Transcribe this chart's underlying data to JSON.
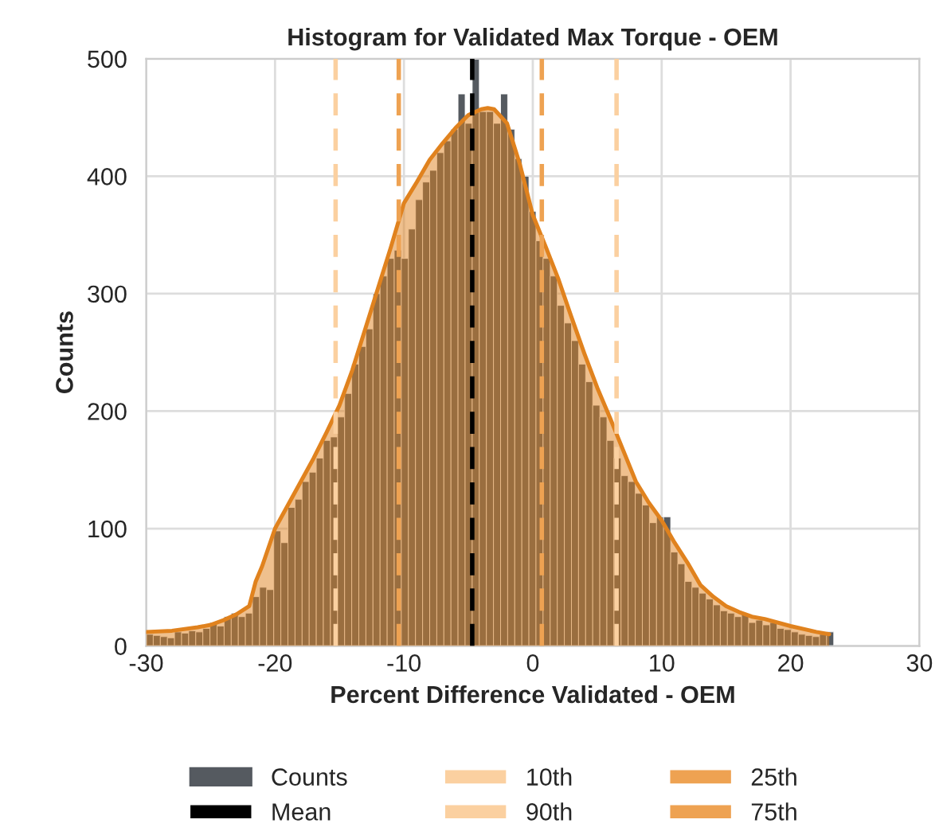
{
  "chart_data": {
    "type": "histogram",
    "title": "Histogram for Validated Max Torque - OEM",
    "xlabel": "Percent Difference Validated - OEM",
    "ylabel": "Counts",
    "xlim": [
      -30,
      30
    ],
    "xticks": [
      -30,
      -20,
      -10,
      0,
      10,
      20,
      30
    ],
    "ylim": [
      0,
      500
    ],
    "yticks": [
      0,
      100,
      200,
      300,
      400,
      500
    ],
    "grid": true,
    "legend": "bottom",
    "series": [
      {
        "name": "Counts",
        "color": "#555a60",
        "bins": [
          -30,
          -29.45,
          -28.9,
          -28.35,
          -27.8,
          -27.25,
          -26.7,
          -26.15,
          -25.6,
          -25.05,
          -24.5,
          -23.95,
          -23.4,
          -22.85,
          -22.3,
          -21.75,
          -21.2,
          -20.65,
          -20.1,
          -19.55,
          -19,
          -18.45,
          -17.9,
          -17.35,
          -16.8,
          -16.25,
          -15.7,
          -15.15,
          -14.6,
          -14.05,
          -13.5,
          -12.95,
          -12.4,
          -11.85,
          -11.3,
          -10.75,
          -10.2,
          -9.65,
          -9.1,
          -8.55,
          -8,
          -7.45,
          -6.9,
          -6.35,
          -5.8,
          -5.25,
          -4.7,
          -4.15,
          -3.6,
          -3.05,
          -2.5,
          -1.95,
          -1.4,
          -0.85,
          -0.3,
          0.25,
          0.8,
          1.35,
          1.9,
          2.45,
          3,
          3.55,
          4.1,
          4.65,
          5.2,
          5.75,
          6.3,
          6.85,
          7.4,
          7.95,
          8.5,
          9.05,
          9.6,
          10.15,
          10.7,
          11.25,
          11.8,
          12.35,
          12.9,
          13.45,
          14,
          14.55,
          15.1,
          15.65,
          16.2,
          16.75,
          17.3,
          17.85,
          18.4,
          18.95,
          19.5,
          20.05,
          20.6,
          21.15,
          21.7,
          22.25,
          22.8,
          23.35
        ],
        "values": [
          10,
          9,
          8,
          7,
          12,
          11,
          13,
          12,
          15,
          20,
          17,
          25,
          28,
          25,
          28,
          42,
          50,
          48,
          98,
          88,
          118,
          125,
          140,
          148,
          160,
          175,
          178,
          195,
          215,
          240,
          255,
          270,
          300,
          315,
          330,
          337,
          330,
          355,
          380,
          395,
          405,
          420,
          430,
          440,
          470,
          445,
          500,
          455,
          455,
          445,
          470,
          440,
          415,
          400,
          370,
          345,
          330,
          315,
          290,
          275,
          260,
          240,
          225,
          205,
          195,
          175,
          160,
          145,
          140,
          130,
          120,
          105,
          110,
          110,
          80,
          70,
          55,
          50,
          45,
          40,
          35,
          30,
          28,
          25,
          27,
          20,
          22,
          18,
          20,
          15,
          14,
          12,
          10,
          9,
          8,
          10,
          12
        ]
      },
      {
        "type": "area",
        "color": "#e0821e",
        "x": [
          -30,
          -28,
          -26,
          -25,
          -24,
          -23,
          -22,
          -21.5,
          -21,
          -20,
          -19,
          -18,
          -17,
          -16,
          -15,
          -14,
          -13,
          -12,
          -11,
          -10,
          -9,
          -8,
          -7,
          -6,
          -5,
          -4,
          -3.5,
          -3,
          -2,
          -1,
          0,
          1,
          2,
          3,
          4,
          5,
          6,
          7,
          8,
          9,
          10,
          11,
          12,
          13,
          14,
          15,
          16,
          17,
          18,
          20,
          22,
          23
        ],
        "values": [
          12,
          13,
          16,
          18,
          22,
          27,
          34,
          55,
          68,
          100,
          120,
          140,
          160,
          182,
          205,
          235,
          270,
          305,
          340,
          377,
          395,
          414,
          428,
          441,
          452,
          457,
          458,
          457,
          445,
          410,
          367,
          340,
          312,
          280,
          249,
          220,
          194,
          167,
          140,
          122,
          107,
          88,
          71,
          52,
          42,
          34,
          29,
          25,
          23,
          17,
          12,
          10
        ]
      }
    ],
    "ref_lines": [
      {
        "axis": "x",
        "value": -4.7,
        "label": "Mean",
        "color": "#000000",
        "line_style": "dashed"
      },
      {
        "axis": "x",
        "value": -15.3,
        "label": "10th",
        "color": "#fbd0a0",
        "line_style": "dashed"
      },
      {
        "axis": "x",
        "value": 6.5,
        "label": "90th",
        "color": "#fbd0a0",
        "line_style": "dashed"
      },
      {
        "axis": "x",
        "value": -10.4,
        "label": "25th",
        "color": "#eea252",
        "line_style": "dashed"
      },
      {
        "axis": "x",
        "value": 0.7,
        "label": "75th",
        "color": "#eea252",
        "line_style": "dashed"
      }
    ]
  }
}
